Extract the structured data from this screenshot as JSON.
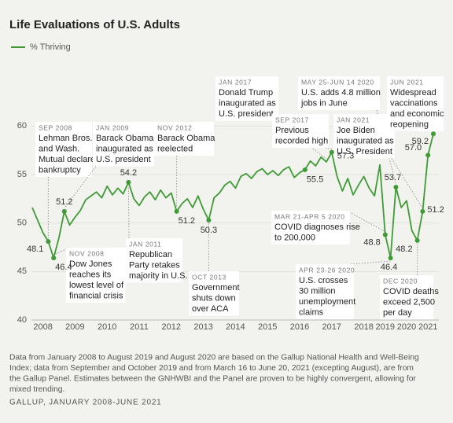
{
  "chart_data": {
    "type": "line",
    "title": "Life Evaluations of U.S. Adults",
    "categories": [
      null,
      null,
      "2008",
      null,
      null,
      null,
      null,
      null,
      "2009",
      null,
      null,
      null,
      null,
      null,
      "2010",
      null,
      null,
      null,
      null,
      null,
      "2011",
      null,
      null,
      null,
      null,
      null,
      "2012",
      null,
      null,
      null,
      null,
      null,
      "2013",
      null,
      null,
      null,
      null,
      null,
      "2014",
      null,
      null,
      null,
      null,
      null,
      "2015",
      null,
      null,
      null,
      null,
      null,
      "2016",
      null,
      null,
      null,
      null,
      null,
      "2017",
      null,
      null,
      null,
      null,
      null,
      "2018",
      null,
      null,
      null,
      "2019",
      null,
      null,
      null,
      "2020",
      null,
      null,
      null,
      "2021",
      null
    ],
    "series": [
      {
        "name": "% Thriving",
        "color": "#3f9b35",
        "values": [
          51.6,
          50.3,
          49.0,
          48.1,
          46.4,
          48.5,
          51.2,
          49.8,
          50.6,
          51.3,
          52.4,
          52.8,
          53.2,
          52.6,
          53.8,
          52.9,
          53.6,
          53.0,
          54.2,
          52.5,
          51.8,
          52.7,
          53.2,
          52.4,
          53.4,
          52.6,
          53.1,
          51.2,
          52.0,
          52.5,
          51.6,
          52.8,
          51.4,
          50.3,
          52.6,
          53.1,
          53.9,
          54.3,
          53.6,
          54.8,
          55.1,
          54.6,
          55.3,
          55.6,
          55.0,
          55.4,
          54.9,
          55.5,
          55.8,
          54.7,
          55.2,
          55.5,
          56.4,
          55.9,
          56.8,
          56.3,
          57.3,
          54.8,
          53.3,
          54.6,
          52.9,
          53.9,
          54.8,
          53.6,
          52.8,
          56.0,
          48.8,
          46.4,
          53.7,
          51.6,
          52.3,
          49.2,
          48.2,
          51.2,
          57.0,
          59.2
        ],
        "value_labels": [
          null,
          null,
          null,
          "48.1",
          "46.4",
          null,
          "51.2",
          null,
          null,
          null,
          null,
          null,
          null,
          null,
          null,
          null,
          null,
          null,
          "54.2",
          null,
          null,
          null,
          null,
          null,
          null,
          null,
          null,
          "51.2",
          null,
          null,
          null,
          null,
          null,
          "50.3",
          null,
          null,
          null,
          null,
          null,
          null,
          null,
          null,
          null,
          null,
          null,
          null,
          null,
          null,
          null,
          null,
          null,
          "55.5",
          null,
          null,
          null,
          null,
          "57.3",
          null,
          null,
          null,
          null,
          null,
          null,
          null,
          null,
          null,
          "48.8",
          "46.4",
          "53.7",
          null,
          null,
          null,
          "48.2",
          "51.2",
          "57.0",
          "59.2"
        ]
      }
    ],
    "ylim": [
      40,
      61
    ],
    "yticks": [
      40,
      45,
      50,
      55,
      60
    ],
    "grid": true,
    "annotations": [
      {
        "date": "SEP 2008",
        "text": [
          "Lehman Bros.",
          "and Wash.",
          "Mutual declare",
          "bankruptcy"
        ]
      },
      {
        "date": "NOV 2008",
        "text": [
          "Dow Jones",
          "reaches its",
          "lowest level of",
          "financial crisis"
        ]
      },
      {
        "date": "JAN 2009",
        "text": [
          "Barack Obama",
          "inaugurated as",
          "U.S. president"
        ]
      },
      {
        "date": "JAN 2011",
        "text": [
          "Republican",
          "Party retakes",
          "majority in U.S."
        ]
      },
      {
        "date": "NOV 2012",
        "text": [
          "Barack Obama",
          "reelected"
        ]
      },
      {
        "date": "OCT 2013",
        "text": [
          "Government",
          "shuts down",
          "over ACA"
        ]
      },
      {
        "date": "JAN 2017",
        "text": [
          "Donald Trump",
          "inaugurated as",
          "U.S. president"
        ]
      },
      {
        "date": "SEP 2017",
        "text": [
          "Previous",
          "recorded high"
        ]
      },
      {
        "date": "MAY 25-JUN 14 2020",
        "text": [
          "U.S. adds 4.8 million",
          "jobs in June"
        ]
      },
      {
        "date": "JAN 2021",
        "text": [
          "Joe Biden",
          "inaugurated as",
          "U.S. President"
        ]
      },
      {
        "date": "JUN 2021",
        "text": [
          "Widespread",
          "vaccinations",
          "and economic",
          "reopening"
        ]
      },
      {
        "date": "MAR 21-APR 5 2020",
        "text": [
          "COVID diagnoses rise",
          "to 200,000"
        ]
      },
      {
        "date": "APR 23-26 2020",
        "text": [
          "U.S. crosses",
          "30 million",
          "unemployment",
          "claims"
        ]
      },
      {
        "date": "DEC 2020",
        "text": [
          "COVID deaths",
          "exceed 2,500",
          "per day"
        ]
      }
    ],
    "note": [
      "Data from January 2008 to August 2019 and August 2020 are based on the Gallup National Health and Well-Being",
      "Index; data from September and October 2019 and from March 16 to June 20, 2021 (excepting August), are from",
      "the Gallup Panel. Estimates between the GNHWBI and the Panel are proven to be highly convergent, allowing for",
      "mixed trending."
    ],
    "source": "GALLUP, JANUARY 2008-JUNE 2021"
  }
}
